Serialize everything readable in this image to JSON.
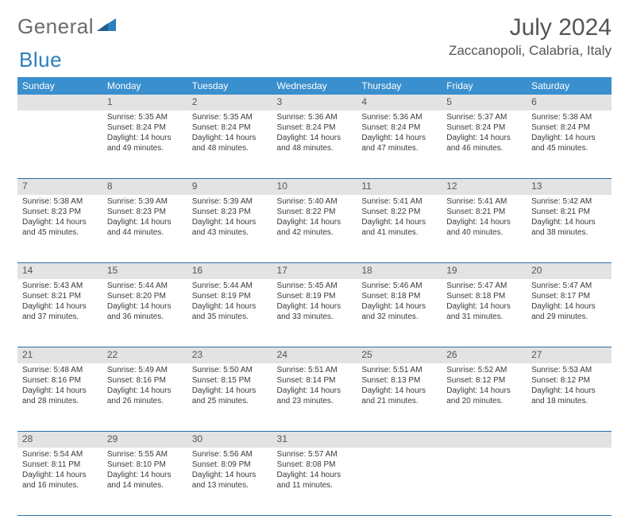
{
  "logo": {
    "text1": "General",
    "text2": "Blue"
  },
  "title": "July 2024",
  "location": "Zaccanopoli, Calabria, Italy",
  "colors": {
    "header_bg": "#3a8fce",
    "header_text": "#ffffff",
    "daynum_bg": "#e3e3e3",
    "cell_border": "#2a6fa8",
    "logo_gray": "#6b6b6b",
    "logo_blue": "#2a7fbf"
  },
  "weekdays": [
    "Sunday",
    "Monday",
    "Tuesday",
    "Wednesday",
    "Thursday",
    "Friday",
    "Saturday"
  ],
  "weeks": [
    [
      null,
      {
        "n": "1",
        "sr": "5:35 AM",
        "ss": "8:24 PM",
        "dl": "14 hours and 49 minutes."
      },
      {
        "n": "2",
        "sr": "5:35 AM",
        "ss": "8:24 PM",
        "dl": "14 hours and 48 minutes."
      },
      {
        "n": "3",
        "sr": "5:36 AM",
        "ss": "8:24 PM",
        "dl": "14 hours and 48 minutes."
      },
      {
        "n": "4",
        "sr": "5:36 AM",
        "ss": "8:24 PM",
        "dl": "14 hours and 47 minutes."
      },
      {
        "n": "5",
        "sr": "5:37 AM",
        "ss": "8:24 PM",
        "dl": "14 hours and 46 minutes."
      },
      {
        "n": "6",
        "sr": "5:38 AM",
        "ss": "8:24 PM",
        "dl": "14 hours and 45 minutes."
      }
    ],
    [
      {
        "n": "7",
        "sr": "5:38 AM",
        "ss": "8:23 PM",
        "dl": "14 hours and 45 minutes."
      },
      {
        "n": "8",
        "sr": "5:39 AM",
        "ss": "8:23 PM",
        "dl": "14 hours and 44 minutes."
      },
      {
        "n": "9",
        "sr": "5:39 AM",
        "ss": "8:23 PM",
        "dl": "14 hours and 43 minutes."
      },
      {
        "n": "10",
        "sr": "5:40 AM",
        "ss": "8:22 PM",
        "dl": "14 hours and 42 minutes."
      },
      {
        "n": "11",
        "sr": "5:41 AM",
        "ss": "8:22 PM",
        "dl": "14 hours and 41 minutes."
      },
      {
        "n": "12",
        "sr": "5:41 AM",
        "ss": "8:21 PM",
        "dl": "14 hours and 40 minutes."
      },
      {
        "n": "13",
        "sr": "5:42 AM",
        "ss": "8:21 PM",
        "dl": "14 hours and 38 minutes."
      }
    ],
    [
      {
        "n": "14",
        "sr": "5:43 AM",
        "ss": "8:21 PM",
        "dl": "14 hours and 37 minutes."
      },
      {
        "n": "15",
        "sr": "5:44 AM",
        "ss": "8:20 PM",
        "dl": "14 hours and 36 minutes."
      },
      {
        "n": "16",
        "sr": "5:44 AM",
        "ss": "8:19 PM",
        "dl": "14 hours and 35 minutes."
      },
      {
        "n": "17",
        "sr": "5:45 AM",
        "ss": "8:19 PM",
        "dl": "14 hours and 33 minutes."
      },
      {
        "n": "18",
        "sr": "5:46 AM",
        "ss": "8:18 PM",
        "dl": "14 hours and 32 minutes."
      },
      {
        "n": "19",
        "sr": "5:47 AM",
        "ss": "8:18 PM",
        "dl": "14 hours and 31 minutes."
      },
      {
        "n": "20",
        "sr": "5:47 AM",
        "ss": "8:17 PM",
        "dl": "14 hours and 29 minutes."
      }
    ],
    [
      {
        "n": "21",
        "sr": "5:48 AM",
        "ss": "8:16 PM",
        "dl": "14 hours and 28 minutes."
      },
      {
        "n": "22",
        "sr": "5:49 AM",
        "ss": "8:16 PM",
        "dl": "14 hours and 26 minutes."
      },
      {
        "n": "23",
        "sr": "5:50 AM",
        "ss": "8:15 PM",
        "dl": "14 hours and 25 minutes."
      },
      {
        "n": "24",
        "sr": "5:51 AM",
        "ss": "8:14 PM",
        "dl": "14 hours and 23 minutes."
      },
      {
        "n": "25",
        "sr": "5:51 AM",
        "ss": "8:13 PM",
        "dl": "14 hours and 21 minutes."
      },
      {
        "n": "26",
        "sr": "5:52 AM",
        "ss": "8:12 PM",
        "dl": "14 hours and 20 minutes."
      },
      {
        "n": "27",
        "sr": "5:53 AM",
        "ss": "8:12 PM",
        "dl": "14 hours and 18 minutes."
      }
    ],
    [
      {
        "n": "28",
        "sr": "5:54 AM",
        "ss": "8:11 PM",
        "dl": "14 hours and 16 minutes."
      },
      {
        "n": "29",
        "sr": "5:55 AM",
        "ss": "8:10 PM",
        "dl": "14 hours and 14 minutes."
      },
      {
        "n": "30",
        "sr": "5:56 AM",
        "ss": "8:09 PM",
        "dl": "14 hours and 13 minutes."
      },
      {
        "n": "31",
        "sr": "5:57 AM",
        "ss": "8:08 PM",
        "dl": "14 hours and 11 minutes."
      },
      null,
      null,
      null
    ]
  ],
  "labels": {
    "sunrise": "Sunrise:",
    "sunset": "Sunset:",
    "daylight": "Daylight:"
  }
}
